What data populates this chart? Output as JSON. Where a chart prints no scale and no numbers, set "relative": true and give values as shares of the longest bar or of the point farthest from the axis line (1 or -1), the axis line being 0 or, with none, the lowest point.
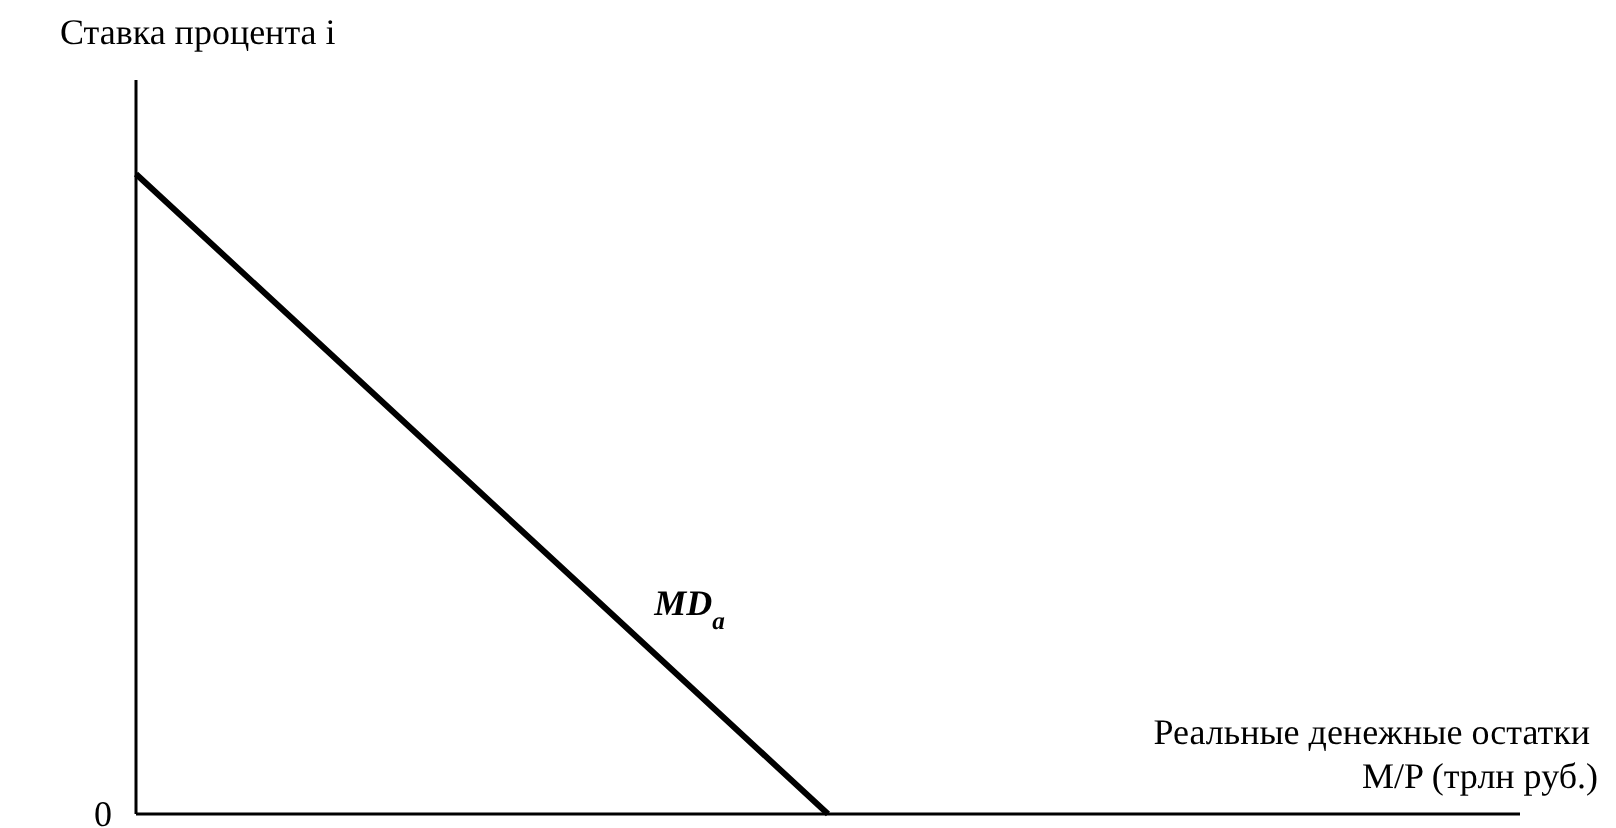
{
  "chart_data": {
    "type": "line",
    "relative": true,
    "ylabel": "Ставка процента i",
    "xlabel": "Реальные денежные остатки\nM/P (трлн руб.)",
    "categories": [
      null,
      null,
      null,
      null,
      null,
      null,
      null,
      null,
      null,
      null
    ],
    "series": [
      {
        "color": "#000000",
        "values": [
          1,
          0.8,
          0.6,
          0.4,
          0.2,
          0,
          null,
          null,
          null,
          null
        ]
      }
    ],
    "annotations": [
      "0",
      "MD$_{a}$"
    ],
    "marker": "none",
    "line_style": "solid"
  }
}
